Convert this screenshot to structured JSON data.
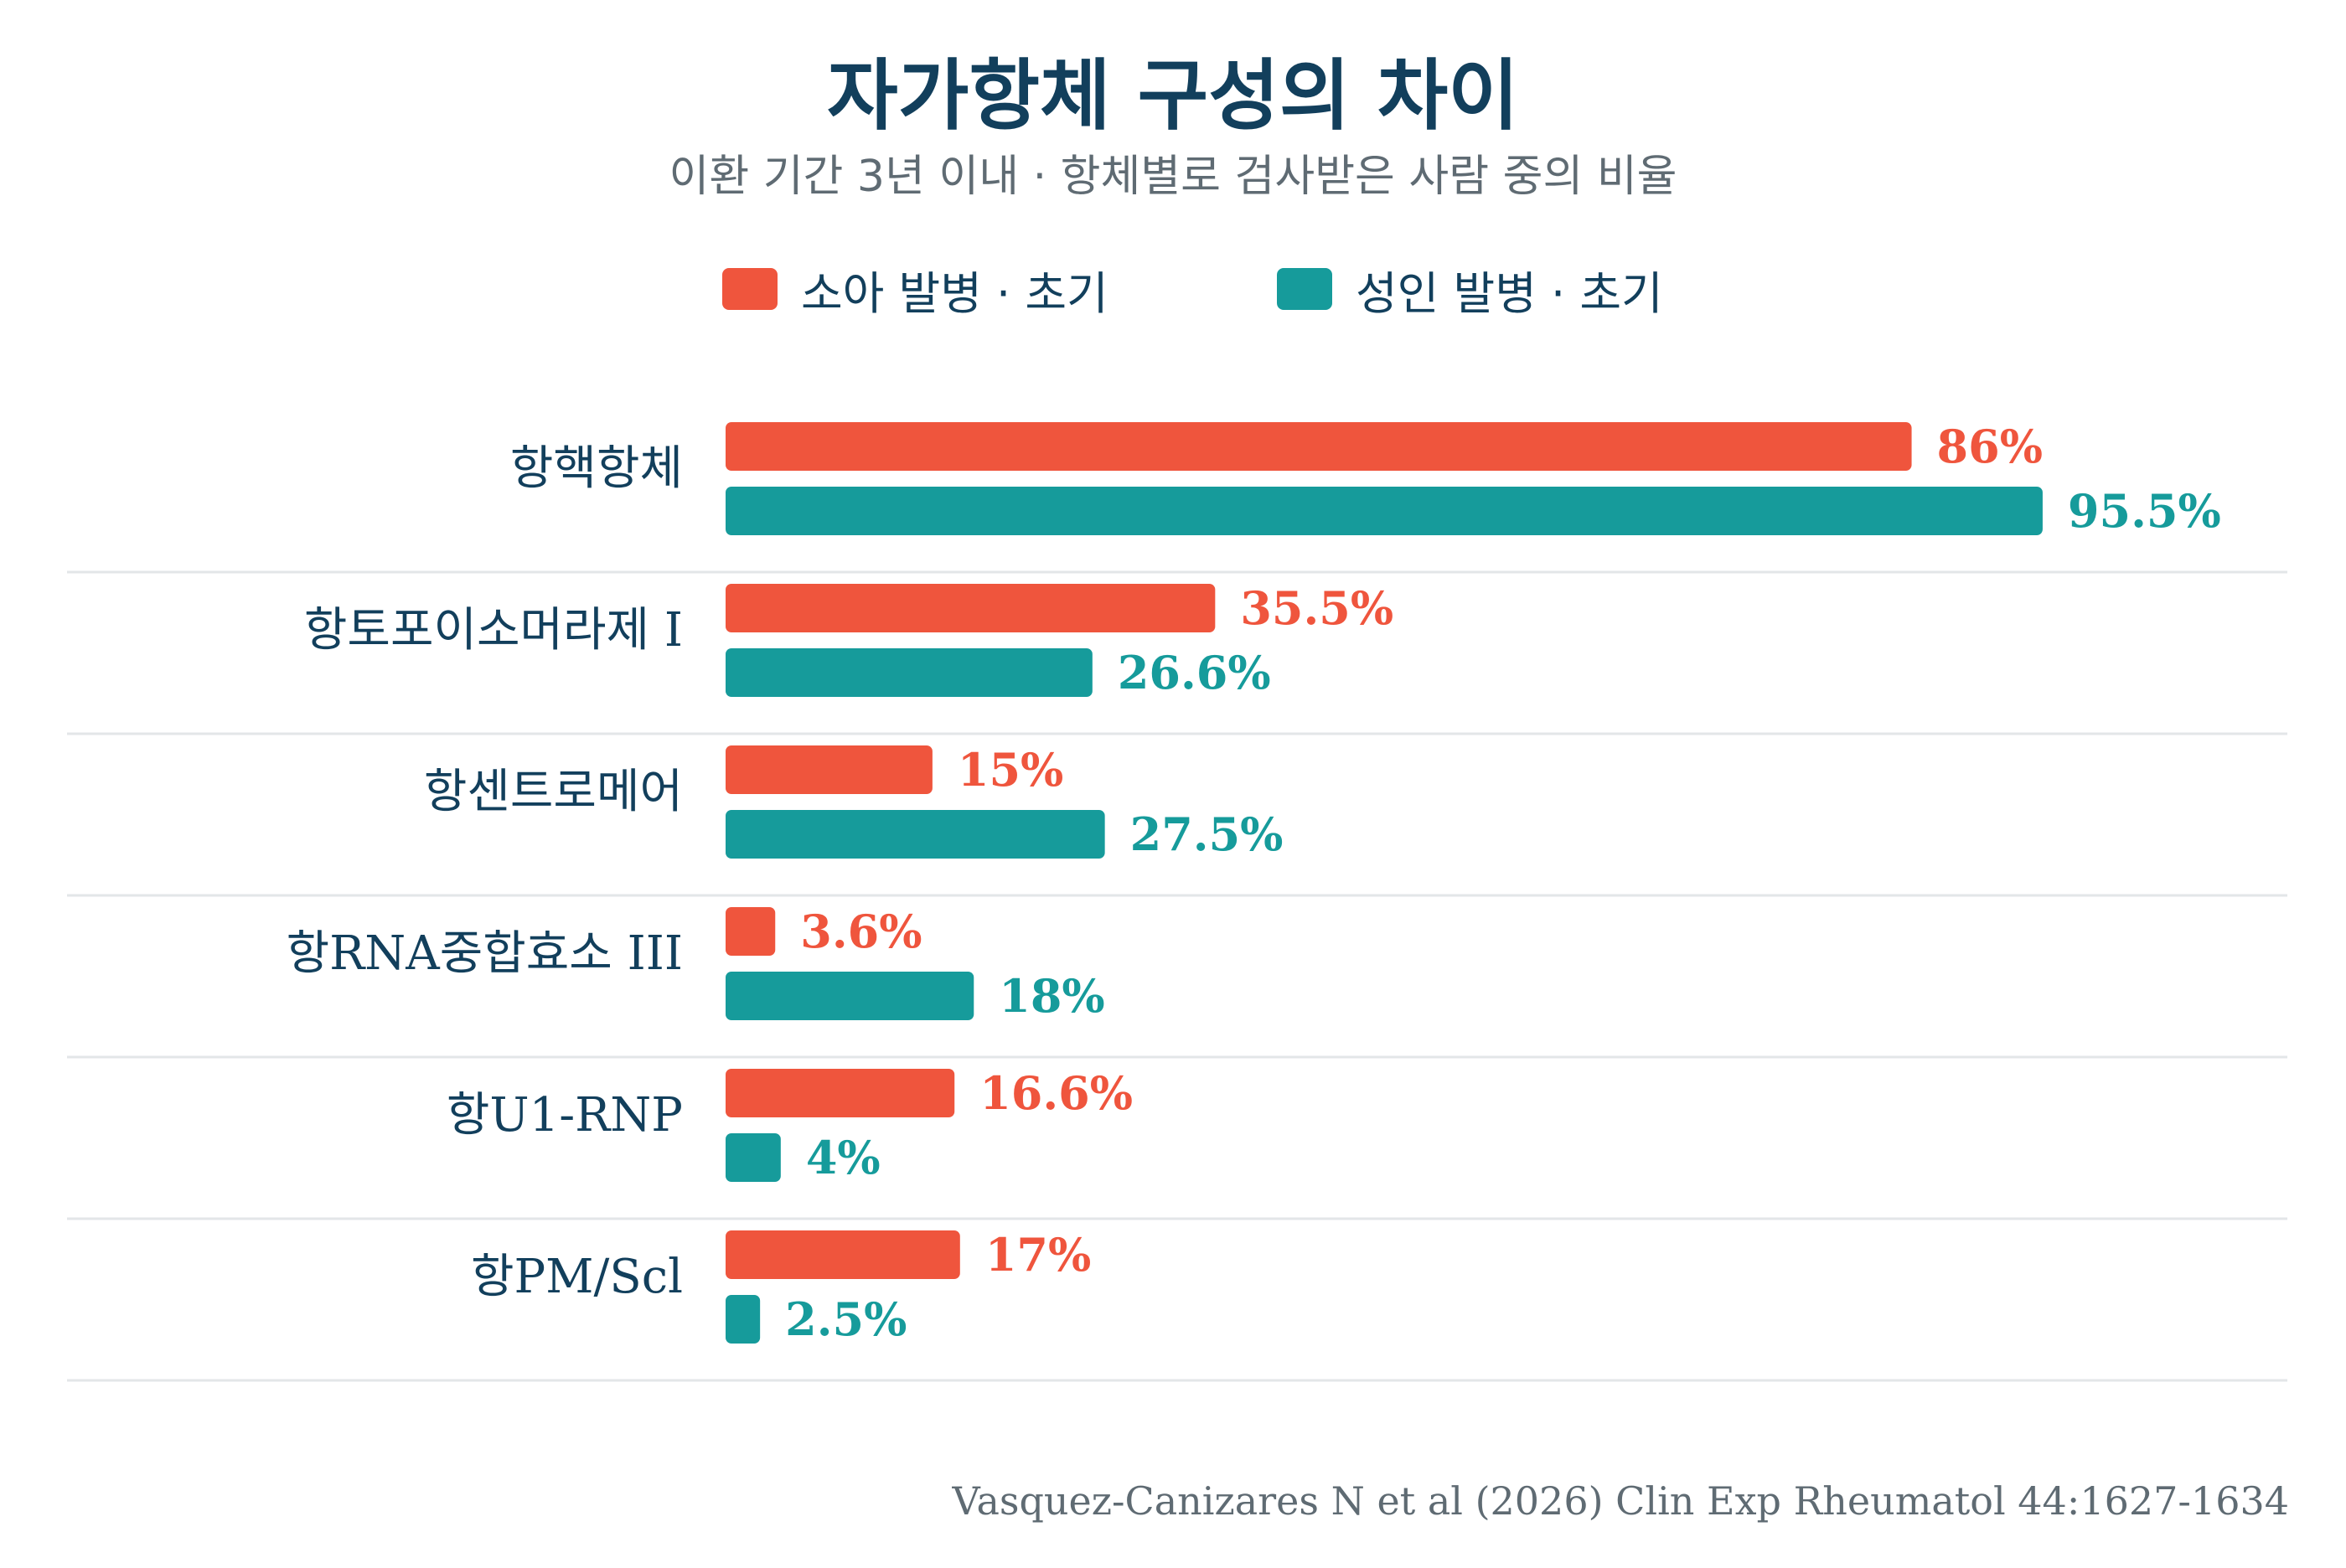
{
  "chart_data": {
    "type": "bar",
    "orientation": "horizontal",
    "title": "자가항체 구성의 차이",
    "subtitle": "이환 기간 3년 이내 · 항체별로 검사받은 사람 중의 비율",
    "categories": [
      "항핵항체",
      "항토포이소머라제 I",
      "항센트로메어",
      "항RNA중합효소 III",
      "항U1-RNP",
      "항PM/Scl"
    ],
    "series": [
      {
        "name": "소아 발병 · 초기",
        "color": "#ef553d",
        "values": [
          86,
          35.5,
          15,
          3.6,
          16.6,
          17
        ],
        "labels": [
          "86%",
          "35.5%",
          "15%",
          "3.6%",
          "16.6%",
          "17%"
        ]
      },
      {
        "name": "성인 발병 · 초기",
        "color": "#169b9b",
        "values": [
          95.5,
          26.6,
          27.5,
          18,
          4,
          2.5
        ],
        "labels": [
          "95.5%",
          "26.6%",
          "27.5%",
          "18%",
          "4%",
          "2.5%"
        ]
      }
    ],
    "xlim": [
      0,
      100
    ],
    "legend_position": "top-center",
    "grid": false
  },
  "source": "Vasquez-Canizares N et al (2026) Clin Exp Rheumatol 44:1627-1634",
  "colors": {
    "title": "#123f5c",
    "category_label": "#123f5c",
    "subtitle": "#5f6b73",
    "separator": "#e3e6e8"
  }
}
